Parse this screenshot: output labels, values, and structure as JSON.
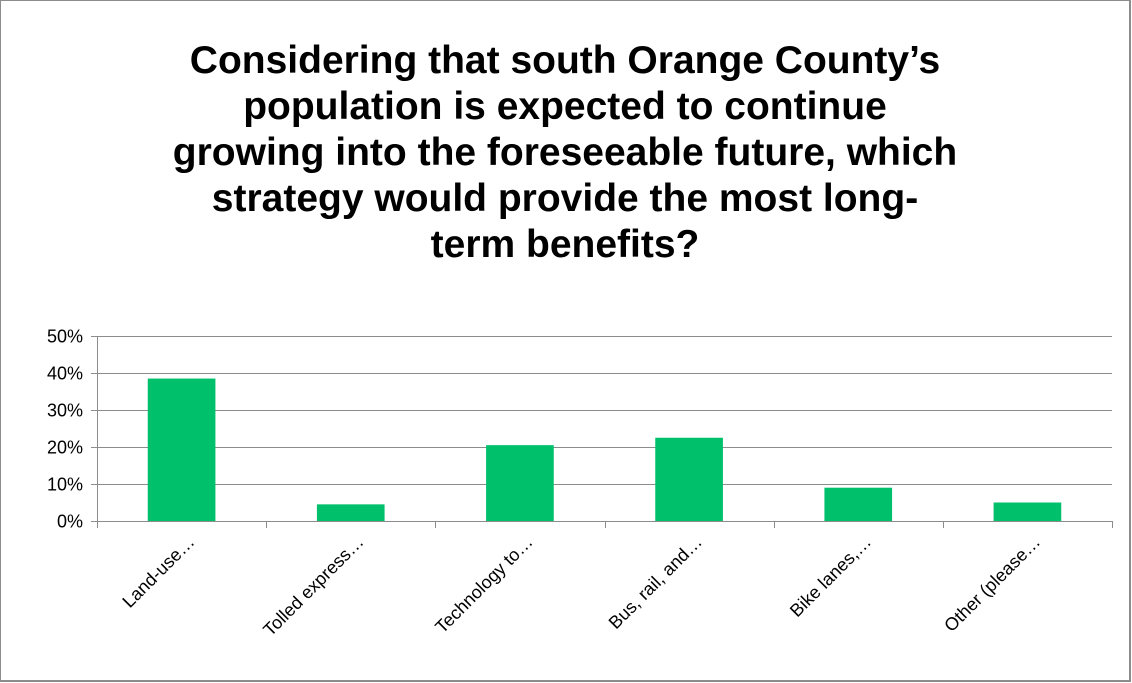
{
  "chart_data": {
    "type": "bar",
    "title": "Considering that south Orange County’s population is expected to continue growing into the foreseeable future, which strategy would provide the most long-term benefits?",
    "title_lines": [
      "Considering that south Orange County’s",
      "population is expected to continue",
      "growing into the foreseeable future, which",
      "strategy would provide the most long-",
      "term benefits?"
    ],
    "categories": [
      "Land-use…",
      "Tolled express…",
      "Technology to…",
      "Bus, rail, and…",
      "Bike lanes,…",
      "Other (please…"
    ],
    "values": [
      38.5,
      4.5,
      20.5,
      22.5,
      9,
      5
    ],
    "ylim": [
      0,
      50
    ],
    "y_ticks": [
      0,
      10,
      20,
      30,
      40,
      50
    ],
    "y_tick_labels": [
      "0%",
      "10%",
      "20%",
      "30%",
      "40%",
      "50%"
    ],
    "xlabel": "",
    "ylabel": "",
    "grid": true,
    "legend": "none",
    "bar_color": "#00c06b",
    "grid_color": "#8c8c8c"
  }
}
